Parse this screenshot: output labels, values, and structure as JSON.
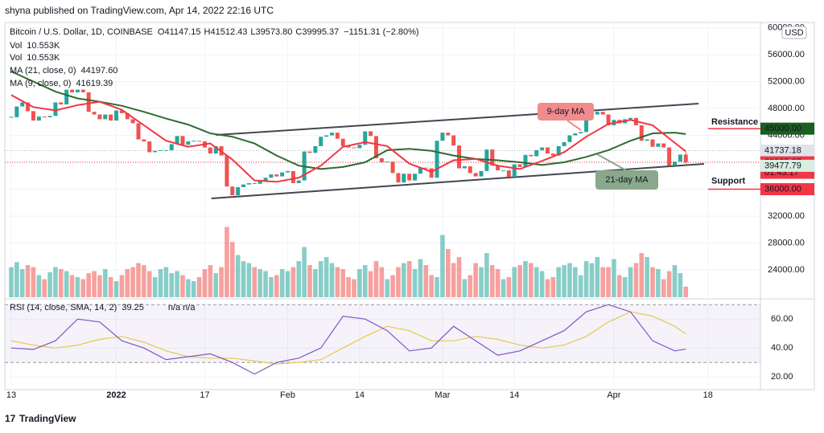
{
  "header": "shyna published on TradingView.com, Apr 14, 2022 22:16 UTC",
  "footer": "TradingView",
  "chart_data": {
    "type": "candlestick",
    "title": "Bitcoin / U.S. Dollar, 1D, COINBASE",
    "ohlc_labels": [
      [
        "O",
        "41147.15"
      ],
      [
        "H",
        "41512.43"
      ],
      [
        "L",
        "39573.80"
      ],
      [
        "C",
        "39995.37"
      ]
    ],
    "change": "−1151.31 (−2.80%)",
    "up_color": "#26a69a",
    "down_color": "#ef5350",
    "close": [
      46700,
      48300,
      48900,
      47600,
      46200,
      46800,
      46700,
      46900,
      48900,
      48600,
      50800,
      50400,
      50800,
      50400,
      47500,
      47100,
      46400,
      47100,
      46200,
      47700,
      47300,
      46400,
      45800,
      43400,
      43100,
      41500,
      41700,
      41800,
      41800,
      42700,
      43900,
      42600,
      43100,
      43200,
      43100,
      42200,
      41300,
      42400,
      41000,
      36400,
      35100,
      36300,
      36700,
      36900,
      36800,
      37200,
      37700,
      38200,
      37900,
      38500,
      38700,
      36900,
      37300,
      41600,
      41400,
      42400,
      43800,
      44000,
      44400,
      43500,
      42400,
      42200,
      42100,
      42600,
      44600,
      43900,
      40600,
      40000,
      40100,
      38400,
      37000,
      38300,
      37300,
      38300,
      39200,
      39100,
      37700,
      43200,
      44400,
      44000,
      42500,
      39100,
      39400,
      38400,
      37900,
      38700,
      41900,
      39500,
      38800,
      38800,
      37800,
      39700,
      39300,
      41100,
      40900,
      41800,
      42200,
      41300,
      41000,
      42400,
      43000,
      44000,
      44300,
      44500,
      46800,
      47100,
      47500,
      47100,
      45500,
      46300,
      45800,
      46400,
      46600,
      45500,
      43200,
      43400,
      42300,
      42800,
      42200,
      39500,
      40100,
      41147.15,
      39995.37
    ],
    "last_high": 41512.43,
    "last_low": 39573.8,
    "xlim": [
      -1.16,
      135.5
    ],
    "xticks": [
      {
        "value": 0,
        "label": "13"
      },
      {
        "value": 19,
        "label": "2022"
      },
      {
        "value": 35,
        "label": "17"
      },
      {
        "value": 50,
        "label": "Feb"
      },
      {
        "value": 63,
        "label": "14"
      },
      {
        "value": 78,
        "label": "Mar"
      },
      {
        "value": 91,
        "label": "14"
      },
      {
        "value": 109,
        "label": "Apr"
      },
      {
        "value": 126,
        "label": "18"
      }
    ],
    "ylim": [
      19940,
      60780
    ],
    "yticks": [
      {
        "value": 24000,
        "label": "24000.00"
      },
      {
        "value": 28000,
        "label": "28000.00"
      },
      {
        "value": 32000,
        "label": "32000.00"
      },
      {
        "value": 36000,
        "label": "36000.00"
      },
      {
        "value": 40000,
        "label": "40000.00"
      },
      {
        "value": 44000,
        "label": "44000.00"
      },
      {
        "value": 48000,
        "label": "48000.00"
      },
      {
        "value": 52000,
        "label": "52000.00"
      },
      {
        "value": 56000,
        "label": "56000.00"
      },
      {
        "value": 60000,
        "label": "60000.00"
      }
    ],
    "currency": "USD",
    "volume": {
      "name": "Vol",
      "value_label": "10.553K",
      "ylim": [
        0,
        80
      ],
      "values": [
        30,
        35,
        28,
        32,
        30,
        22,
        18,
        25,
        30,
        28,
        26,
        22,
        20,
        18,
        24,
        26,
        22,
        28,
        20,
        16,
        22,
        28,
        30,
        34,
        32,
        26,
        20,
        28,
        30,
        24,
        26,
        22,
        18,
        16,
        20,
        28,
        32,
        24,
        30,
        70,
        55,
        42,
        36,
        34,
        30,
        28,
        26,
        20,
        22,
        28,
        26,
        30,
        36,
        50,
        32,
        28,
        36,
        40,
        34,
        30,
        28,
        20,
        18,
        28,
        32,
        26,
        36,
        30,
        18,
        22,
        30,
        34,
        36,
        28,
        38,
        32,
        22,
        20,
        62,
        48,
        34,
        40,
        18,
        22,
        34,
        30,
        44,
        32,
        28,
        18,
        20,
        30,
        32,
        36,
        34,
        30,
        26,
        18,
        20,
        30,
        32,
        34,
        30,
        22,
        36,
        34,
        40,
        30,
        30,
        38,
        22,
        20,
        30,
        34,
        44,
        40,
        30,
        28,
        18,
        26,
        32,
        24,
        10.553
      ]
    },
    "moving_averages": [
      {
        "name": "MA (21, close, 0)",
        "color": "#2e6b30",
        "last_label": "44197.60",
        "x": [
          0,
          4,
          8,
          12,
          16,
          20,
          24,
          28,
          32,
          36,
          40,
          44,
          48,
          52,
          56,
          60,
          64,
          68,
          72,
          76,
          80,
          84,
          88,
          92,
          96,
          100,
          104,
          108,
          112,
          116,
          120,
          122
        ],
        "values": [
          53500,
          52000,
          50500,
          49500,
          49000,
          48400,
          47500,
          46500,
          45600,
          44300,
          43800,
          42800,
          41000,
          39500,
          39000,
          39300,
          40000,
          41800,
          42000,
          41700,
          41000,
          40500,
          40300,
          40000,
          39600,
          40000,
          40800,
          41800,
          43200,
          44300,
          44400,
          44197.6
        ]
      },
      {
        "name": "MA (9, close, 0)",
        "color": "#f23645",
        "last_label": "41619.39",
        "x": [
          0,
          4,
          8,
          12,
          16,
          20,
          24,
          28,
          32,
          36,
          40,
          44,
          48,
          52,
          56,
          60,
          64,
          68,
          72,
          76,
          80,
          84,
          88,
          92,
          96,
          100,
          104,
          108,
          112,
          116,
          120,
          122
        ],
        "values": [
          50000,
          48200,
          47700,
          48500,
          49000,
          47800,
          45500,
          43200,
          42300,
          42800,
          40400,
          37300,
          37100,
          37700,
          39500,
          42300,
          43000,
          42400,
          39800,
          38600,
          40300,
          40500,
          39500,
          39000,
          40200,
          41500,
          43800,
          45700,
          46300,
          45500,
          42900,
          41619.39
        ]
      }
    ],
    "rsi": {
      "name": "RSI (14, close, SMA, 14, 2)",
      "na": "n/a n/a",
      "color": "#7e57c2",
      "sma_color": "#e8c94a",
      "ylim": [
        14,
        74
      ],
      "bands": [
        30,
        70
      ],
      "yticks": [
        {
          "value": 20,
          "label": "20.00"
        },
        {
          "value": 40,
          "label": "40.00"
        },
        {
          "value": 60,
          "label": "60.00"
        }
      ],
      "x": [
        0,
        4,
        8,
        12,
        16,
        20,
        24,
        28,
        32,
        36,
        40,
        44,
        48,
        52,
        56,
        60,
        64,
        68,
        72,
        76,
        80,
        84,
        88,
        92,
        96,
        100,
        104,
        108,
        112,
        116,
        120,
        122
      ],
      "values": [
        40,
        39,
        45,
        60,
        58,
        45,
        40,
        32,
        34,
        36,
        30,
        22,
        30,
        33,
        40,
        62,
        60,
        52,
        38,
        40,
        55,
        45,
        35,
        38,
        45,
        52,
        65,
        70,
        65,
        45,
        38,
        39.25
      ],
      "sma": [
        45,
        42,
        40,
        42,
        46,
        48,
        44,
        38,
        34,
        33,
        33,
        31,
        29,
        30,
        32,
        40,
        48,
        55,
        52,
        45,
        45,
        48,
        46,
        42,
        40,
        42,
        48,
        58,
        65,
        62,
        55,
        49.8
      ]
    },
    "price_tags": [
      {
        "value": 45000,
        "label": "45000.00",
        "color": "#1b5e20",
        "text_color": "#ffffff"
      },
      {
        "value": 41737.18,
        "label": "41737.18",
        "color": "#e0e3eb",
        "text_color": "#131722"
      },
      {
        "value": 39995.37,
        "label": "39995.37",
        "countdown": "01:43:17",
        "color": "#f23645",
        "text_color": "#ffffff"
      },
      {
        "value": 39477.79,
        "label": "39477.79",
        "color": "#d7eee0",
        "text_color": "#131722"
      },
      {
        "value": 36000,
        "label": "36000.00",
        "color": "#f23645",
        "text_color": "#ffffff"
      }
    ],
    "trendlines": [
      {
        "x": [
          37,
          124.3
        ],
        "values": [
          44060,
          48716
        ]
      },
      {
        "x": [
          36.2,
          125.3
        ],
        "values": [
          34627,
          39761
        ]
      }
    ],
    "annotations": {
      "ma9": "9-day MA",
      "ma21": "21-day MA",
      "resistance": "Resistance",
      "support": "Support"
    }
  }
}
